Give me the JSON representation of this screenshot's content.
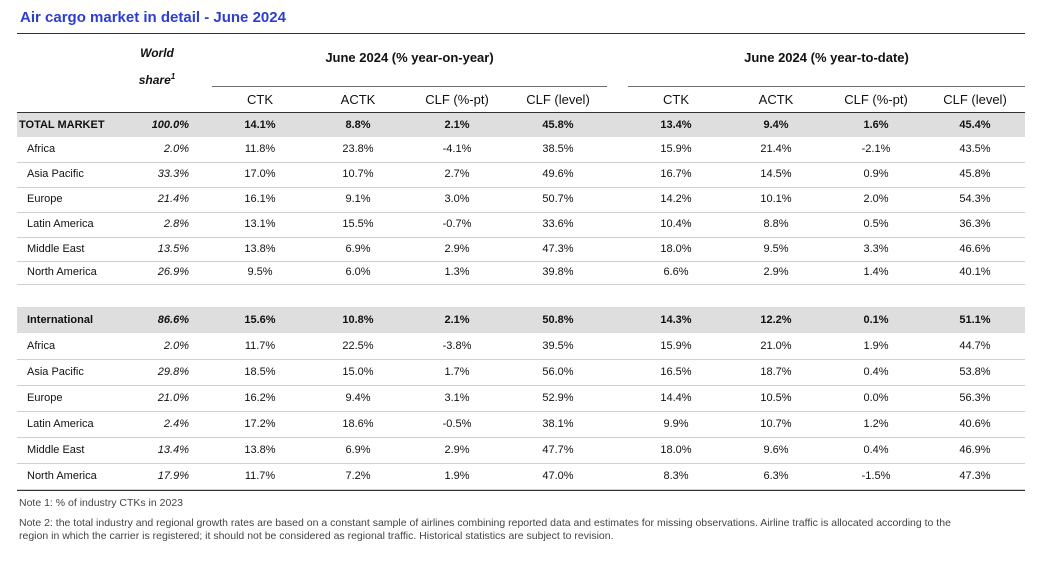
{
  "title": "Air cargo market in detail - June 2024",
  "header": {
    "world_share_line1": "World",
    "world_share_line2": "share",
    "world_share_sup": "1",
    "group_yoy": "June 2024 (% year-on-year)",
    "group_ytd": "June 2024 (% year-to-date)",
    "columns": [
      "CTK",
      "ACTK",
      "CLF (%-pt)",
      "CLF (level)",
      "CTK",
      "ACTK",
      "CLF (%-pt)",
      "CLF (level)"
    ]
  },
  "total_market": [
    {
      "label": "TOTAL MARKET",
      "share": "100.0%",
      "v": [
        "14.1%",
        "8.8%",
        "2.1%",
        "45.8%",
        "13.4%",
        "9.4%",
        "1.6%",
        "45.4%"
      ]
    },
    {
      "label": "Africa",
      "share": "2.0%",
      "v": [
        "11.8%",
        "23.8%",
        "-4.1%",
        "38.5%",
        "15.9%",
        "21.4%",
        "-2.1%",
        "43.5%"
      ]
    },
    {
      "label": "Asia Pacific",
      "share": "33.3%",
      "v": [
        "17.0%",
        "10.7%",
        "2.7%",
        "49.6%",
        "16.7%",
        "14.5%",
        "0.9%",
        "45.8%"
      ]
    },
    {
      "label": "Europe",
      "share": "21.4%",
      "v": [
        "16.1%",
        "9.1%",
        "3.0%",
        "50.7%",
        "14.2%",
        "10.1%",
        "2.0%",
        "54.3%"
      ]
    },
    {
      "label": "Latin America",
      "share": "2.8%",
      "v": [
        "13.1%",
        "15.5%",
        "-0.7%",
        "33.6%",
        "10.4%",
        "8.8%",
        "0.5%",
        "36.3%"
      ]
    },
    {
      "label": "Middle East",
      "share": "13.5%",
      "v": [
        "13.8%",
        "6.9%",
        "2.9%",
        "47.3%",
        "18.0%",
        "9.5%",
        "3.3%",
        "46.6%"
      ]
    },
    {
      "label": "North America",
      "share": "26.9%",
      "v": [
        "9.5%",
        "6.0%",
        "1.3%",
        "39.8%",
        "6.6%",
        "2.9%",
        "1.4%",
        "40.1%"
      ]
    }
  ],
  "international": [
    {
      "label": "International",
      "share": "86.6%",
      "v": [
        "15.6%",
        "10.8%",
        "2.1%",
        "50.8%",
        "14.3%",
        "12.2%",
        "0.1%",
        "51.1%"
      ]
    },
    {
      "label": "Africa",
      "share": "2.0%",
      "v": [
        "11.7%",
        "22.5%",
        "-3.8%",
        "39.5%",
        "15.9%",
        "21.0%",
        "1.9%",
        "44.7%"
      ]
    },
    {
      "label": "Asia Pacific",
      "share": "29.8%",
      "v": [
        "18.5%",
        "15.0%",
        "1.7%",
        "56.0%",
        "16.5%",
        "18.7%",
        "0.4%",
        "53.8%"
      ]
    },
    {
      "label": "Europe",
      "share": "21.0%",
      "v": [
        "16.2%",
        "9.4%",
        "3.1%",
        "52.9%",
        "14.4%",
        "10.5%",
        "0.0%",
        "56.3%"
      ]
    },
    {
      "label": "Latin America",
      "share": "2.4%",
      "v": [
        "17.2%",
        "18.6%",
        "-0.5%",
        "38.1%",
        "9.9%",
        "10.7%",
        "1.2%",
        "40.6%"
      ]
    },
    {
      "label": "Middle East",
      "share": "13.4%",
      "v": [
        "13.8%",
        "6.9%",
        "2.9%",
        "47.7%",
        "18.0%",
        "9.6%",
        "0.4%",
        "46.9%"
      ]
    },
    {
      "label": "North America",
      "share": "17.9%",
      "v": [
        "11.7%",
        "7.2%",
        "1.9%",
        "47.0%",
        "8.3%",
        "6.3%",
        "-1.5%",
        "47.3%"
      ]
    }
  ],
  "notes": {
    "note1": "Note 1: % of industry CTKs in 2023",
    "note2_line1": "Note 2: the total industry and regional growth rates are based on a constant sample of airlines combining reported data and estimates for missing observations. Airline traffic is allocated according to the",
    "note2_line2": "region in which the carrier is registered; it should not be considered as regional traffic. Historical statistics are subject to revision."
  }
}
